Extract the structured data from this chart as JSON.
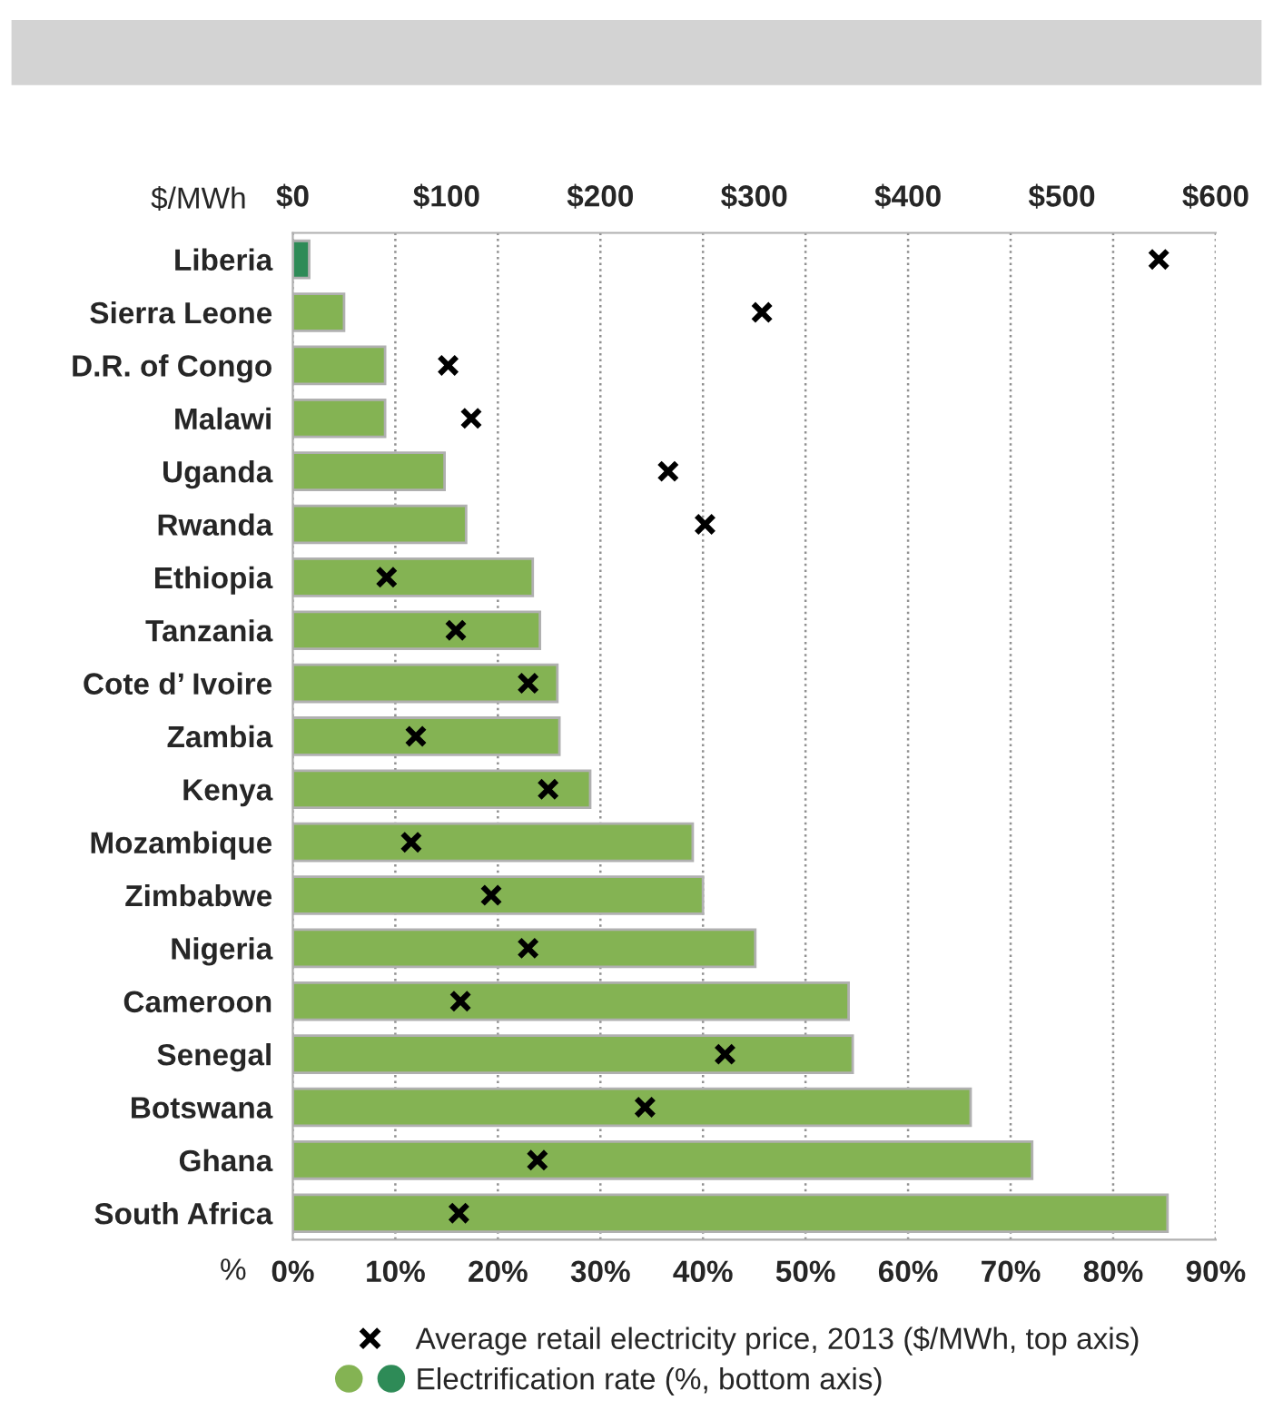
{
  "chart_data": {
    "type": "bar",
    "orientation": "horizontal",
    "categories": [
      "Liberia",
      "Sierra Leone",
      "D.R. of Congo",
      "Malawi",
      "Uganda",
      "Rwanda",
      "Ethiopia",
      "Tanzania",
      "Cote d’ Ivoire",
      "Zambia",
      "Kenya",
      "Mozambique",
      "Zimbabwe",
      "Nigeria",
      "Cameroon",
      "Senegal",
      "Botswana",
      "Ghana",
      "South Africa"
    ],
    "series": [
      {
        "name": "Electrification rate (%, bottom axis)",
        "colors": [
          "#2e8b57",
          "#84b353",
          "#84b353",
          "#84b353",
          "#84b353",
          "#84b353",
          "#84b353",
          "#84b353",
          "#84b353",
          "#84b353",
          "#84b353",
          "#84b353",
          "#84b353",
          "#84b353",
          "#84b353",
          "#84b353",
          "#84b353",
          "#84b353",
          "#84b353"
        ],
        "values": [
          1.6,
          5.0,
          9.0,
          9.0,
          14.8,
          16.9,
          23.4,
          24.1,
          25.8,
          26.0,
          29.0,
          39.0,
          40.0,
          45.1,
          54.2,
          54.6,
          66.1,
          72.1,
          85.3
        ]
      },
      {
        "name": "Average retail electricity price, 2013 ($/MWh, top axis)",
        "type": "scatter",
        "axis": "x2",
        "marker": "cross",
        "color": "#000000",
        "values": [
          563,
          305,
          101,
          116,
          244,
          268,
          61,
          106,
          153,
          80,
          166,
          77,
          129,
          153,
          109,
          281,
          229,
          159,
          108
        ]
      }
    ],
    "xlabel": "%",
    "x2label": "$/MWh",
    "xlim": [
      0,
      90
    ],
    "xticks": [
      {
        "value": 0,
        "label": "0%"
      },
      {
        "value": 10,
        "label": "10%"
      },
      {
        "value": 20,
        "label": "20%"
      },
      {
        "value": 30,
        "label": "30%"
      },
      {
        "value": 40,
        "label": "40%"
      },
      {
        "value": 50,
        "label": "50%"
      },
      {
        "value": 60,
        "label": "60%"
      },
      {
        "value": 70,
        "label": "70%"
      },
      {
        "value": 80,
        "label": "80%"
      },
      {
        "value": 90,
        "label": "90%"
      }
    ],
    "x2lim": [
      0,
      600
    ],
    "x2ticks": [
      {
        "value": 0,
        "label": "$0"
      },
      {
        "value": 100,
        "label": "$100"
      },
      {
        "value": 200,
        "label": "$200"
      },
      {
        "value": 300,
        "label": "$300"
      },
      {
        "value": 400,
        "label": "$400"
      },
      {
        "value": 500,
        "label": "$500"
      },
      {
        "value": 600,
        "label": "$600"
      }
    ],
    "grid": "x",
    "legend": "bottom"
  }
}
